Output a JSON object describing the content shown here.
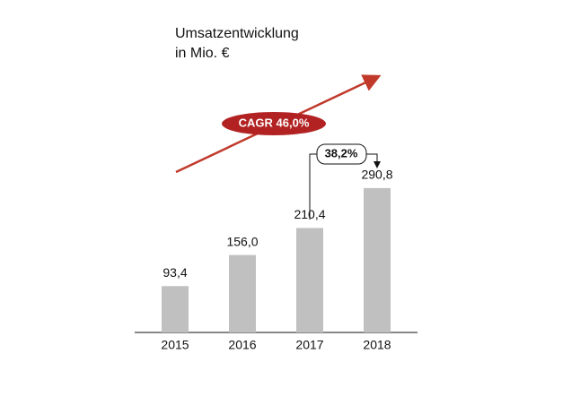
{
  "chart_data": {
    "type": "bar",
    "title": "Umsatzentwicklung",
    "subtitle": "in Mio. €",
    "categories": [
      "2015",
      "2016",
      "2017",
      "2018"
    ],
    "values": [
      93.4,
      156.0,
      210.4,
      290.8
    ],
    "value_labels": [
      "93,4",
      "156,0",
      "210,4",
      "290,8"
    ],
    "color": "#c0c0c0",
    "annotations": [
      "CAGR 46,0%",
      "38,2%"
    ]
  }
}
